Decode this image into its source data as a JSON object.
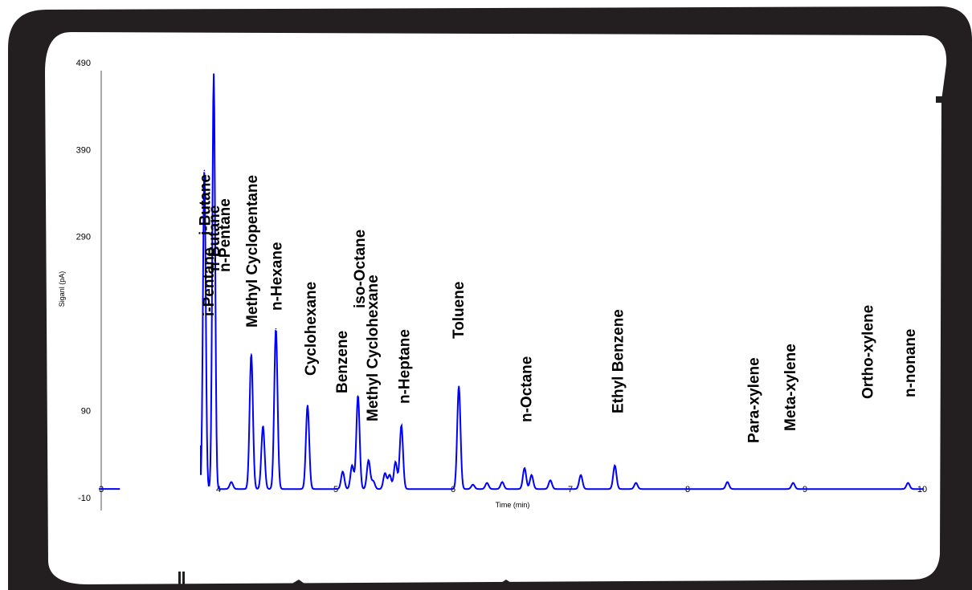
{
  "colors": {
    "frame": "#231f20",
    "panel": "#ffffff",
    "trace": "#0000ff",
    "axis": "#555555"
  },
  "chart_data": {
    "type": "line",
    "title": "",
    "xlabel": "Time (min)",
    "ylabel": "Siganl (pA)",
    "xlim": [
      3,
      10
    ],
    "ylim": [
      -10,
      490
    ],
    "x_ticks": [
      "3",
      "4",
      "5",
      "6",
      "7",
      "8",
      "9",
      "10"
    ],
    "y_ticks": [
      "490",
      "390",
      "290",
      "90",
      "-10"
    ],
    "grid": false,
    "series": [
      {
        "color": "#0000ff",
        "peaks": [
          {
            "t": 3.9,
            "h": 366
          },
          {
            "t": 3.98,
            "h": 477
          },
          {
            "t": 4.13,
            "h": 8
          },
          {
            "t": 4.3,
            "h": 155
          },
          {
            "t": 4.4,
            "h": 72
          },
          {
            "t": 4.51,
            "h": 184
          },
          {
            "t": 4.78,
            "h": 96
          },
          {
            "t": 5.08,
            "h": 20
          },
          {
            "t": 5.16,
            "h": 27
          },
          {
            "t": 5.21,
            "h": 107
          },
          {
            "t": 5.3,
            "h": 33
          },
          {
            "t": 5.34,
            "h": 9
          },
          {
            "t": 5.44,
            "h": 18
          },
          {
            "t": 5.48,
            "h": 16
          },
          {
            "t": 5.53,
            "h": 31
          },
          {
            "t": 5.58,
            "h": 73
          },
          {
            "t": 6.07,
            "h": 118
          },
          {
            "t": 6.19,
            "h": 5
          },
          {
            "t": 6.31,
            "h": 7
          },
          {
            "t": 6.44,
            "h": 8
          },
          {
            "t": 6.63,
            "h": 24
          },
          {
            "t": 6.69,
            "h": 16
          },
          {
            "t": 6.85,
            "h": 10
          },
          {
            "t": 7.11,
            "h": 16
          },
          {
            "t": 7.4,
            "h": 27
          },
          {
            "t": 7.58,
            "h": 7
          },
          {
            "t": 8.36,
            "h": 8
          },
          {
            "t": 8.92,
            "h": 7
          },
          {
            "t": 9.9,
            "h": 7
          }
        ]
      }
    ],
    "peak_labels": [
      {
        "text": "i-Butane",
        "t": 3.9
      },
      {
        "text": "n-Butane",
        "t": 3.98
      },
      {
        "text": "i-Pentane",
        "t": 3.93
      },
      {
        "text": "n-Pentane",
        "t": 4.07
      },
      {
        "text": "Methyl Cyclopentane",
        "t": 4.3
      },
      {
        "text": "n-Hexane",
        "t": 4.51
      },
      {
        "text": "Cyclohexane",
        "t": 4.8
      },
      {
        "text": "Benzene",
        "t": 5.07
      },
      {
        "text": "iso-Octane",
        "t": 5.22
      },
      {
        "text": "Methyl Cyclohexane",
        "t": 5.33
      },
      {
        "text": "n-Heptane",
        "t": 5.6
      },
      {
        "text": "Toluene",
        "t": 6.06
      },
      {
        "text": "n-Octane",
        "t": 6.64
      },
      {
        "text": "Ethyl Benzene",
        "t": 7.42
      },
      {
        "text": "Para-xylene",
        "t": 8.58
      },
      {
        "text": "Meta-xylene",
        "t": 8.89
      },
      {
        "text": "Ortho-xylene",
        "t": 9.55
      },
      {
        "text": "n-nonane",
        "t": 9.91
      }
    ]
  }
}
